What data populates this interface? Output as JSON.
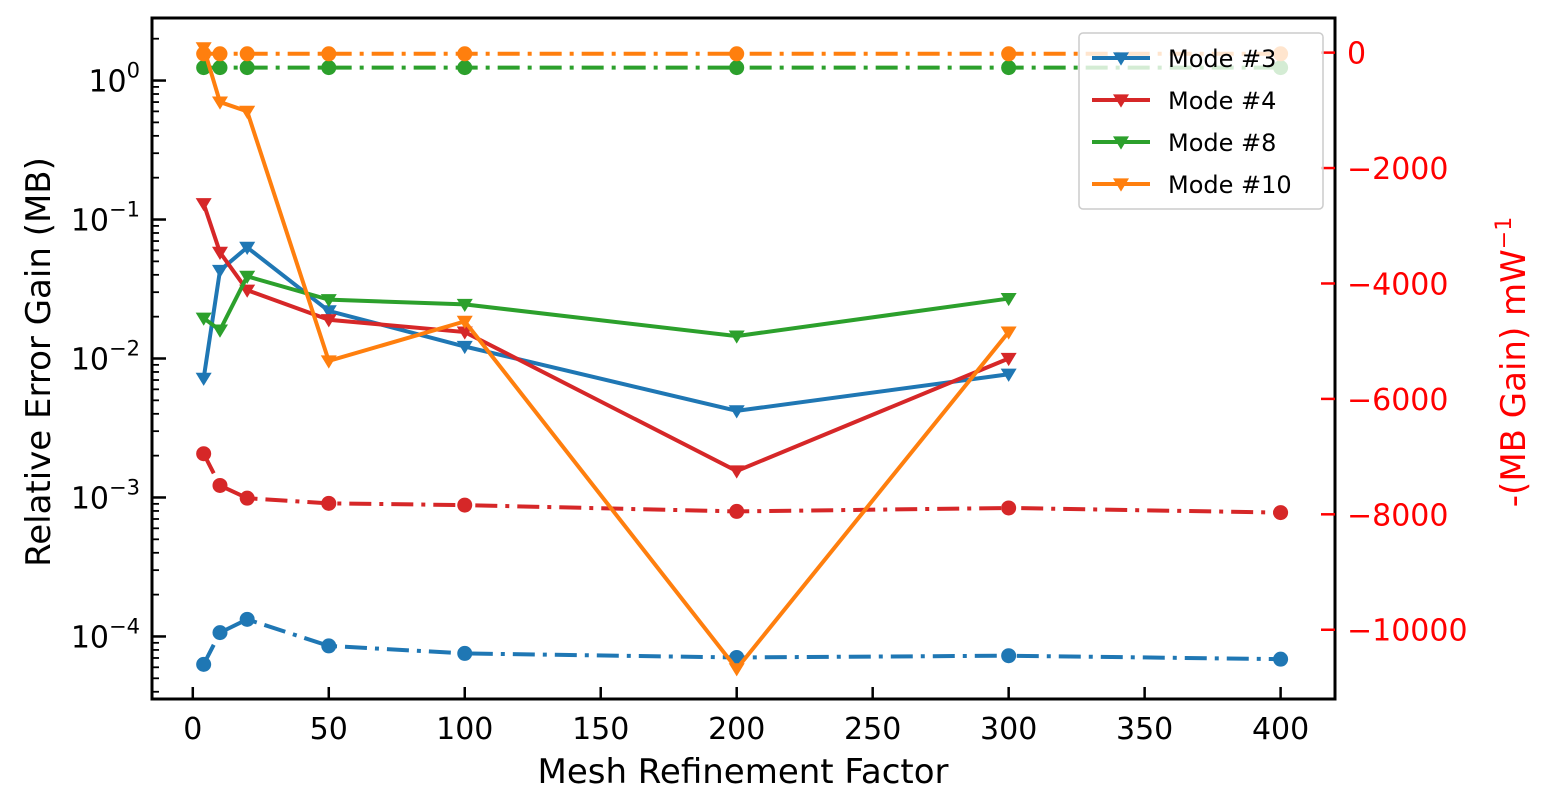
{
  "chart_data": {
    "type": "line",
    "xlabel": "Mesh Refinement Factor",
    "ylabel_left": "Relative Error Gain (MB)",
    "ylabel_right_main": "-(MB Gain)  mW",
    "ylabel_right_sup": "−1",
    "xlim": [
      -15,
      420
    ],
    "x_ticks": [
      0,
      50,
      100,
      150,
      200,
      250,
      300,
      350,
      400
    ],
    "x_tick_labels": [
      "0",
      "50",
      "100",
      "150",
      "200",
      "250",
      "300",
      "350",
      "400"
    ],
    "ylim_left_log10": [
      -4.45,
      0.45
    ],
    "yscale_left": "log",
    "y_left_tick_exponents": [
      0,
      -1,
      -2,
      -3,
      -4
    ],
    "y_left_tick_bases": [
      "10",
      "10",
      "10",
      "10",
      "10"
    ],
    "y_left_tick_supers": [
      "0",
      "−1",
      "−2",
      "−3",
      "−4"
    ],
    "ylim_right": [
      -11200,
      600
    ],
    "y_right_ticks": [
      0,
      -2000,
      -4000,
      -6000,
      -8000,
      -10000
    ],
    "y_right_tick_labels": [
      "0",
      "−2000",
      "−4000",
      "−6000",
      "−8000",
      "−10000"
    ],
    "right_axis_color": "#ff0000",
    "legend_position": "top-right",
    "series_relative_error": [
      {
        "name": "Mode #3",
        "color": "#1f77b4",
        "x": [
          4,
          10,
          20,
          50,
          100,
          200,
          300
        ],
        "y": [
          0.0072,
          0.043,
          0.063,
          0.022,
          0.0122,
          0.0042,
          0.0077
        ]
      },
      {
        "name": "Mode #4",
        "color": "#d62728",
        "x": [
          4,
          10,
          20,
          50,
          100,
          200,
          300
        ],
        "y": [
          0.13,
          0.058,
          0.031,
          0.019,
          0.0155,
          0.00155,
          0.01
        ]
      },
      {
        "name": "Mode #8",
        "color": "#2ca02c",
        "x": [
          4,
          10,
          20,
          50,
          100,
          200,
          300
        ],
        "y": [
          0.0195,
          0.016,
          0.039,
          0.0265,
          0.0245,
          0.0145,
          0.027
        ]
      },
      {
        "name": "Mode #10",
        "color": "#ff7f0e",
        "x": [
          4,
          10,
          20,
          50,
          100,
          200,
          300
        ],
        "y": [
          1.72,
          0.7,
          0.6,
          0.0096,
          0.0185,
          5.85e-05,
          0.0155
        ]
      }
    ],
    "series_mb_gain": [
      {
        "color": "#1f77b4",
        "x": [
          4,
          10,
          20,
          50,
          100,
          200,
          300,
          400
        ],
        "y": [
          -10600,
          -10050,
          -9820,
          -10280,
          -10410,
          -10480,
          -10450,
          -10510
        ]
      },
      {
        "color": "#d62728",
        "x": [
          4,
          10,
          20,
          50,
          100,
          200,
          300,
          400
        ],
        "y": [
          -6950,
          -7500,
          -7720,
          -7810,
          -7840,
          -7950,
          -7890,
          -7970
        ]
      },
      {
        "color": "#2ca02c",
        "x": [
          4,
          10,
          20,
          50,
          100,
          200,
          300,
          400
        ],
        "y": [
          -260,
          -260,
          -260,
          -260,
          -260,
          -260,
          -260,
          -260
        ]
      },
      {
        "color": "#ff7f0e",
        "x": [
          4,
          10,
          20,
          50,
          100,
          200,
          300,
          400
        ],
        "y": [
          -20,
          -20,
          -20,
          -20,
          -20,
          -20,
          -20,
          -20
        ]
      }
    ]
  }
}
